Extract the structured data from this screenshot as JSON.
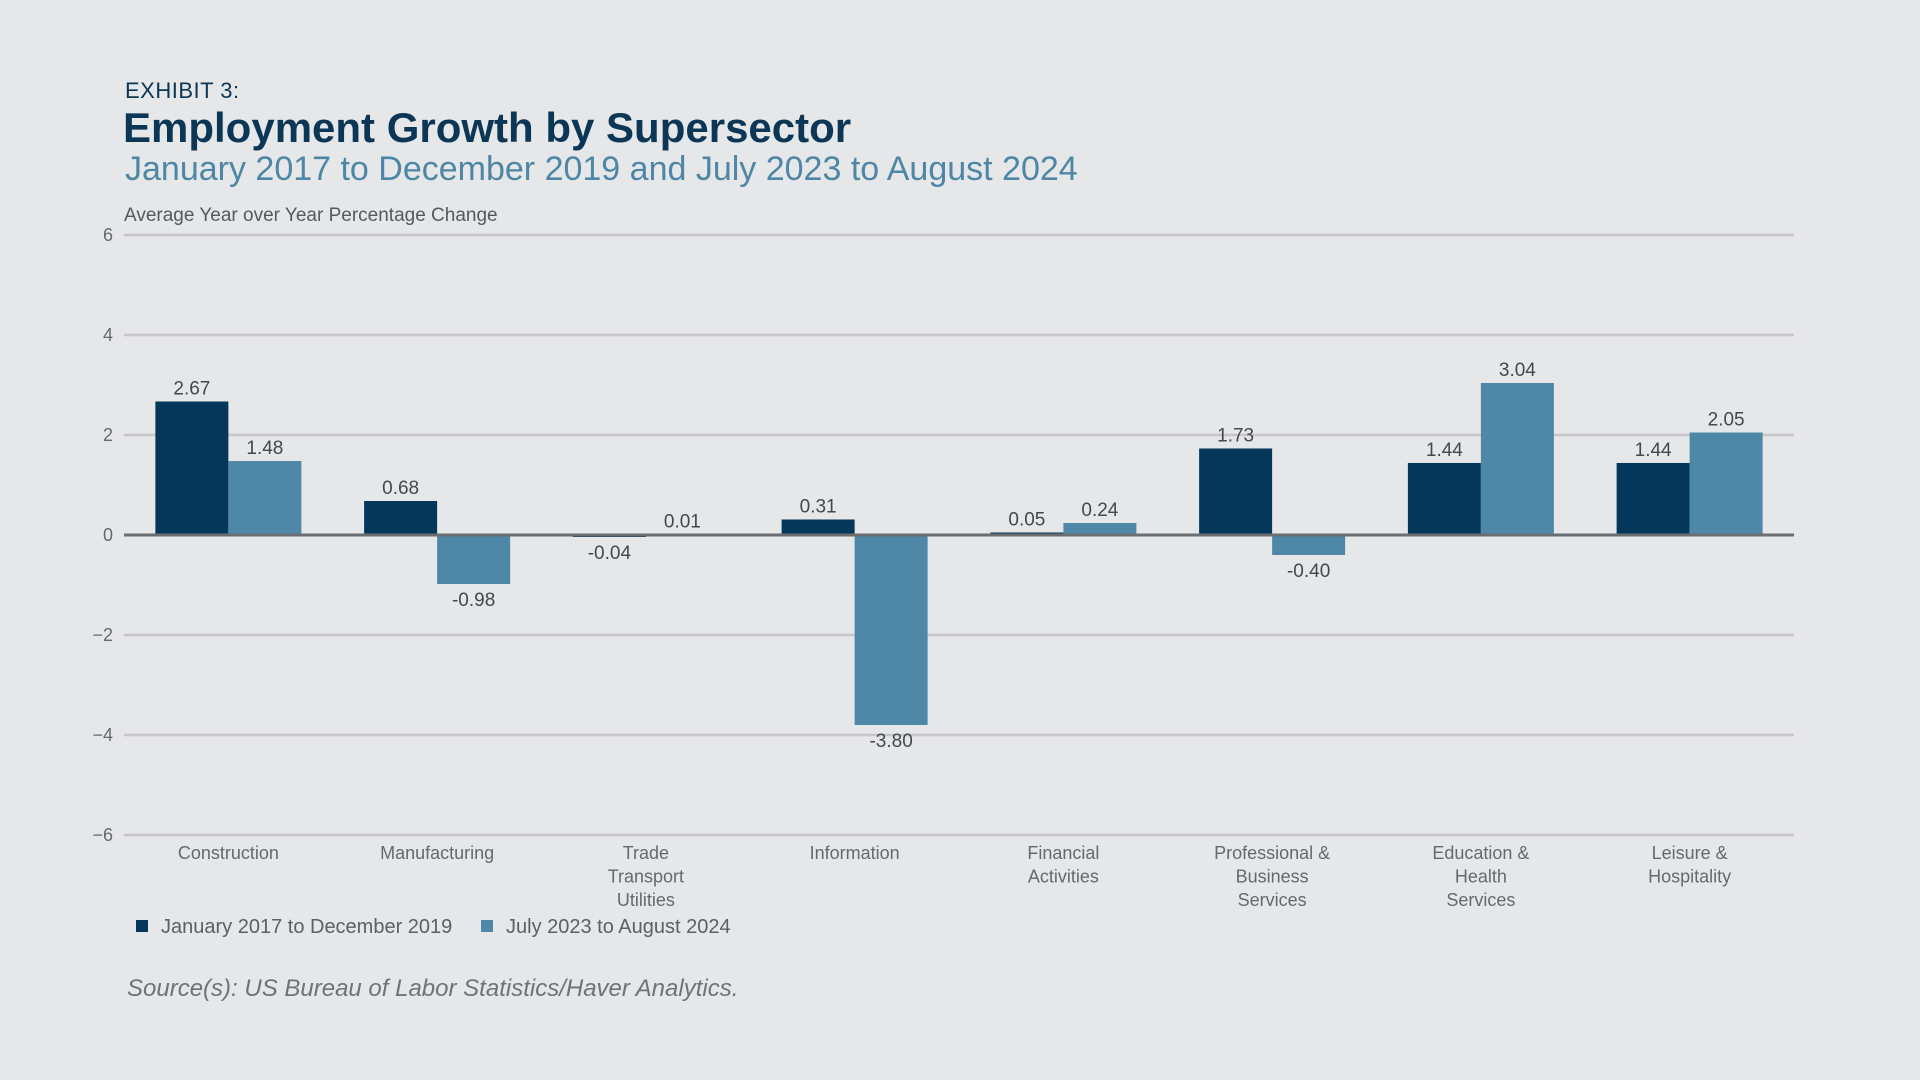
{
  "header": {
    "exhibit": "EXHIBIT 3:",
    "title": "Employment Growth by Supersector",
    "subtitle": "January 2017 to December 2019 and July 2023 to August 2024"
  },
  "source": "Source(s): US Bureau of Labor Statistics/Haver Analytics.",
  "colors": {
    "series1": "#04375a",
    "series2": "#4e88a6",
    "grid": "#c4c6c9",
    "zero": "#6b6e71"
  },
  "chart_data": {
    "type": "bar",
    "ylabel": "Average Year over Year Percentage Change",
    "ylim": [
      -6,
      6
    ],
    "yticks": [
      "6",
      "4",
      "2",
      "0",
      "−2",
      "−4",
      "−6"
    ],
    "ytick_values": [
      6,
      4,
      2,
      0,
      -2,
      -4,
      -6
    ],
    "grid": true,
    "legend_position": "bottom-left",
    "categories": [
      [
        "Construction"
      ],
      [
        "Manufacturing"
      ],
      [
        "Trade",
        "Transport",
        "Utilities"
      ],
      [
        "Information"
      ],
      [
        "Financial",
        "Activities"
      ],
      [
        "Professional &",
        "Business",
        "Services"
      ],
      [
        "Education &",
        "Health",
        "Services"
      ],
      [
        "Leisure &",
        "Hospitality"
      ]
    ],
    "series": [
      {
        "name": "January 2017 to December 2019",
        "values": [
          2.67,
          0.68,
          -0.04,
          0.31,
          0.05,
          1.73,
          1.44,
          1.44
        ],
        "labels": [
          "2.67",
          "0.68",
          "-0.04",
          "0.31",
          "0.05",
          "1.73",
          "1.44",
          "1.44"
        ]
      },
      {
        "name": "July 2023 to August 2024",
        "values": [
          1.48,
          -0.98,
          0.01,
          -3.8,
          0.24,
          -0.4,
          3.04,
          2.05
        ],
        "labels": [
          "1.48",
          "-0.98",
          "0.01",
          "-3.80",
          "0.24",
          "-0.40",
          "3.04",
          "2.05"
        ]
      }
    ]
  }
}
